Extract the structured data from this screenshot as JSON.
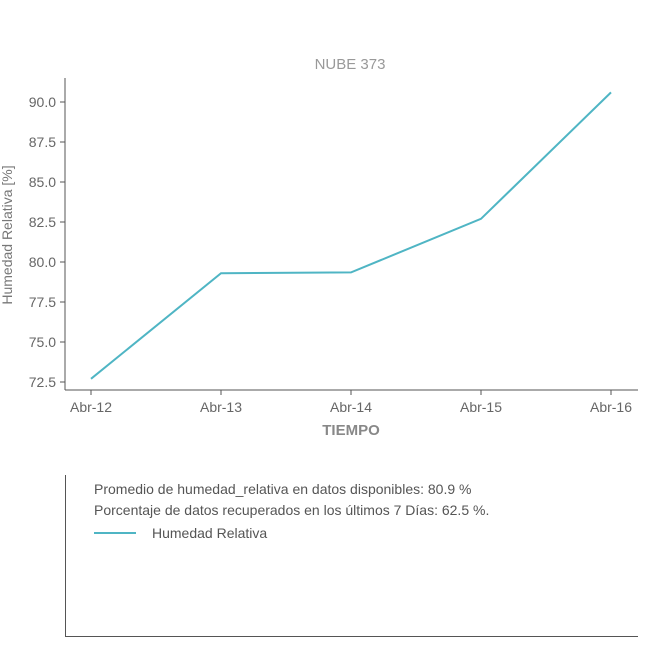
{
  "chart_data": {
    "type": "line",
    "title": "NUBE 373",
    "xlabel": "TIEMPO",
    "ylabel": "Humedad Relativa [%]",
    "categories": [
      "Abr-12",
      "Abr-13",
      "Abr-14",
      "Abr-15",
      "Abr-16"
    ],
    "series": [
      {
        "name": "Humedad Relativa",
        "values": [
          72.7,
          79.3,
          79.35,
          82.7,
          90.6
        ]
      }
    ],
    "ylim": [
      72.0,
      91.5
    ],
    "yticks": [
      "72.5",
      "75.0",
      "77.5",
      "80.0",
      "82.5",
      "85.0",
      "87.5",
      "90.0"
    ],
    "grid": false,
    "line_color": "#4fb5c4"
  },
  "info": {
    "line1": "Promedio de humedad_relativa en datos disponibles: 80.9 %",
    "line2": "Porcentaje de datos recuperados en los últimos 7 Días: 62.5 %.",
    "legend_label": "Humedad Relativa"
  }
}
